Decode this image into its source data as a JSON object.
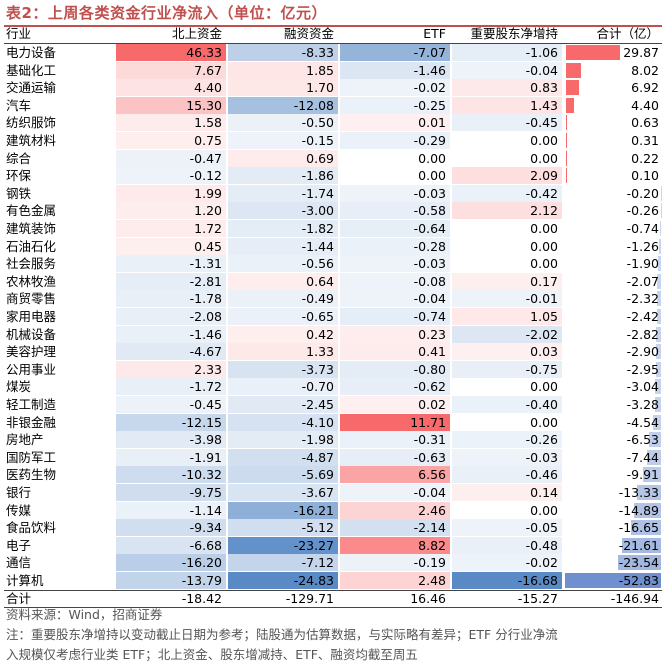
{
  "title": "表2：上周各类资金行业净流入（单位：亿元）",
  "headers": [
    "行业",
    "北上资金",
    "融资资金",
    "ETF",
    "重要股东净增持",
    "合计（亿）"
  ],
  "rows": [
    [
      "电力设备",
      "46.33",
      "-8.33",
      "-7.07",
      "-1.06",
      "29.87"
    ],
    [
      "基础化工",
      "7.67",
      "1.85",
      "-1.46",
      "-0.04",
      "8.02"
    ],
    [
      "交通运输",
      "4.40",
      "1.70",
      "-0.02",
      "0.83",
      "6.92"
    ],
    [
      "汽车",
      "15.30",
      "-12.08",
      "-0.25",
      "1.43",
      "4.40"
    ],
    [
      "纺织服饰",
      "1.58",
      "-0.50",
      "0.01",
      "-0.45",
      "0.63"
    ],
    [
      "建筑材料",
      "0.75",
      "-0.15",
      "-0.29",
      "0.00",
      "0.31"
    ],
    [
      "综合",
      "-0.47",
      "0.69",
      "0.00",
      "0.00",
      "0.22"
    ],
    [
      "环保",
      "-0.12",
      "-1.86",
      "0.00",
      "2.09",
      "0.10"
    ],
    [
      "钢铁",
      "1.99",
      "-1.74",
      "-0.03",
      "-0.42",
      "-0.20"
    ],
    [
      "有色金属",
      "1.20",
      "-3.00",
      "-0.58",
      "2.12",
      "-0.26"
    ],
    [
      "建筑装饰",
      "1.72",
      "-1.82",
      "-0.64",
      "0.00",
      "-0.74"
    ],
    [
      "石油石化",
      "0.45",
      "-1.44",
      "-0.28",
      "0.00",
      "-1.26"
    ],
    [
      "社会服务",
      "-1.31",
      "-0.56",
      "-0.03",
      "0.00",
      "-1.90"
    ],
    [
      "农林牧渔",
      "-2.81",
      "0.64",
      "-0.08",
      "0.17",
      "-2.07"
    ],
    [
      "商贸零售",
      "-1.78",
      "-0.49",
      "-0.04",
      "-0.01",
      "-2.32"
    ],
    [
      "家用电器",
      "-2.08",
      "-0.65",
      "-0.74",
      "1.05",
      "-2.42"
    ],
    [
      "机械设备",
      "-1.46",
      "0.42",
      "0.23",
      "-2.02",
      "-2.82"
    ],
    [
      "美容护理",
      "-4.67",
      "1.33",
      "0.41",
      "0.03",
      "-2.90"
    ],
    [
      "公用事业",
      "2.33",
      "-3.73",
      "-0.80",
      "-0.75",
      "-2.95"
    ],
    [
      "煤炭",
      "-1.72",
      "-0.70",
      "-0.62",
      "0.00",
      "-3.04"
    ],
    [
      "轻工制造",
      "-0.45",
      "-2.45",
      "0.02",
      "-0.40",
      "-3.28"
    ],
    [
      "非银金融",
      "-12.15",
      "-4.10",
      "11.71",
      "0.00",
      "-4.54"
    ],
    [
      "房地产",
      "-3.98",
      "-1.98",
      "-0.31",
      "-0.26",
      "-6.53"
    ],
    [
      "国防军工",
      "-1.91",
      "-4.87",
      "-0.63",
      "-0.03",
      "-7.44"
    ],
    [
      "医药生物",
      "-10.32",
      "-5.69",
      "6.56",
      "-0.46",
      "-9.91"
    ],
    [
      "银行",
      "-9.75",
      "-3.67",
      "-0.04",
      "0.14",
      "-13.33"
    ],
    [
      "传媒",
      "-1.14",
      "-16.21",
      "2.46",
      "0.00",
      "-14.89"
    ],
    [
      "食品饮料",
      "-9.34",
      "-5.12",
      "-2.14",
      "-0.05",
      "-16.65"
    ],
    [
      "电子",
      "-6.68",
      "-23.27",
      "8.82",
      "-0.48",
      "-21.61"
    ],
    [
      "通信",
      "-16.20",
      "-7.12",
      "-0.19",
      "-0.02",
      "-23.54"
    ],
    [
      "计算机",
      "-13.79",
      "-24.83",
      "2.48",
      "-16.68",
      "-52.83"
    ]
  ],
  "total_row": [
    "合计",
    "-18.42",
    "-129.71",
    "16.46",
    "-15.27",
    "-146.94"
  ],
  "notes": [
    "资料来源：Wind，招商证券",
    "注：重要股东净增持以变动截止日期为参考；陆股通为估算数据，与实际略有差异；ETF 分行业净流",
    "入规模仅考虑行业类 ETF；北上资金、股东增减持、ETF、融资均截至周五"
  ],
  "colors": {
    "title": "#c0504d",
    "positive": "#f8696b",
    "negative": "#5a8ac6",
    "bar": "#6f8fcf"
  }
}
